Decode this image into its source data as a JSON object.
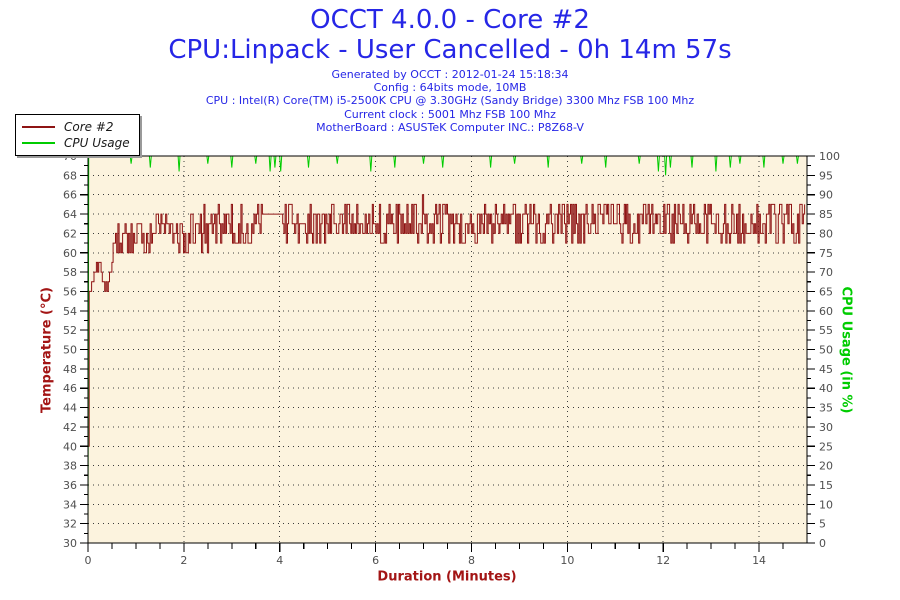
{
  "header": {
    "title_line1": "OCCT 4.0.0 - Core #2",
    "title_line2": "CPU:Linpack - User Cancelled - 0h 14m 57s",
    "info_lines": [
      "Generated by OCCT : 2012-01-24 15:18:34",
      "Config : 64bits mode, 10MB",
      "CPU : Intel(R) Core(TM) i5-2500K CPU @ 3.30GHz (Sandy Bridge) 3300 Mhz FSB 100 Mhz",
      "Current clock : 5001 Mhz FSB 100 Mhz",
      "MotherBoard : ASUSTeK Computer INC.: P8Z68-V"
    ]
  },
  "legend": {
    "items": [
      {
        "label": "Core #2",
        "color": "#8e1414"
      },
      {
        "label": "CPU Usage",
        "color": "#00cc00"
      }
    ]
  },
  "colors": {
    "title_blue": "#2626e6",
    "series_red": "#8e1414",
    "series_green": "#00cc00",
    "axis_red": "#a31515",
    "tick_label": "#4f4f4f",
    "plot_bg": "#fcf3de",
    "grid_dot": "#3c3c3c"
  },
  "chart_data": {
    "type": "line",
    "title": "OCCT 4.0.0 - Core #2",
    "subtitle": "CPU:Linpack - User Cancelled - 0h 14m 57s",
    "grid": "dotted",
    "legend_position": "top-left",
    "x_axis": {
      "label": "Duration (Minutes)",
      "min": 0,
      "max": 15,
      "ticks": [
        0,
        2,
        4,
        6,
        8,
        10,
        12,
        14
      ],
      "minor_step": 0.5
    },
    "y_left": {
      "label": "Temperature (°C)",
      "min": 30,
      "max": 70,
      "ticks": [
        30,
        32,
        34,
        36,
        38,
        40,
        42,
        44,
        46,
        48,
        50,
        52,
        54,
        56,
        58,
        60,
        62,
        64,
        66,
        68,
        70
      ],
      "minor_step": 1
    },
    "y_right": {
      "label": "CPU Usage (in %)",
      "min": 0,
      "max": 100,
      "ticks": [
        0,
        5,
        10,
        15,
        20,
        25,
        30,
        35,
        40,
        45,
        50,
        55,
        60,
        65,
        70,
        75,
        80,
        85,
        90,
        95,
        100
      ],
      "minor_step": 2.5
    },
    "duration_minutes": 14.95,
    "series": [
      {
        "name": "Core #2",
        "axis": "left",
        "color": "#8e1414",
        "unit": "°C",
        "samples": 600,
        "end_x": 14.95,
        "quantize": 1,
        "keypoints": [
          [
            0,
            40
          ],
          [
            0.02,
            56
          ],
          [
            0.08,
            57.5
          ],
          [
            0.15,
            58.2
          ],
          [
            0.25,
            58.6
          ],
          [
            0.32,
            57
          ],
          [
            0.4,
            56.6
          ],
          [
            0.5,
            59.5
          ],
          [
            0.65,
            61
          ],
          [
            0.8,
            60.6
          ],
          [
            1.0,
            61.4
          ],
          [
            1.3,
            62
          ],
          [
            1.7,
            62
          ],
          [
            2.2,
            62.4
          ],
          [
            2.8,
            62.6
          ],
          [
            3.4,
            62.8
          ],
          [
            3.62,
            64
          ],
          [
            4.05,
            64
          ],
          [
            4.15,
            62.9
          ],
          [
            4.6,
            63.0
          ],
          [
            5.0,
            63.1
          ],
          [
            5.5,
            63.3
          ],
          [
            6.0,
            62.9
          ],
          [
            6.5,
            63.2
          ],
          [
            7.0,
            63.4
          ],
          [
            7.5,
            63.0
          ],
          [
            8.0,
            63.1
          ],
          [
            8.5,
            63.3
          ],
          [
            9.0,
            62.9
          ],
          [
            9.5,
            63.1
          ],
          [
            10.0,
            63.4
          ],
          [
            10.5,
            63.1
          ],
          [
            11.0,
            63.0
          ],
          [
            11.5,
            63.2
          ],
          [
            12.0,
            62.9
          ],
          [
            12.5,
            63.1
          ],
          [
            13.0,
            63.3
          ],
          [
            13.5,
            63.1
          ],
          [
            14.0,
            63.4
          ],
          [
            14.5,
            63.1
          ],
          [
            14.95,
            63.3
          ]
        ],
        "flat_segments": [
          {
            "from": 3.62,
            "to": 4.05,
            "value": 64
          }
        ],
        "noise": {
          "seed": 20120124,
          "amplitude": 2.2,
          "early_amplitude": 0.9,
          "start_amplitude": 0.3
        }
      },
      {
        "name": "CPU Usage",
        "axis": "right",
        "color": "#00cc00",
        "unit": "%",
        "keypoints": [
          [
            0,
            2
          ],
          [
            0.015,
            100
          ],
          [
            14.95,
            100
          ]
        ],
        "dips": [
          [
            0.9,
            98
          ],
          [
            1.3,
            97
          ],
          [
            1.9,
            96
          ],
          [
            2.5,
            98
          ],
          [
            3.0,
            97
          ],
          [
            3.5,
            98
          ],
          [
            3.8,
            96
          ],
          [
            3.9,
            97
          ],
          [
            4.02,
            96
          ],
          [
            4.6,
            97
          ],
          [
            5.2,
            98
          ],
          [
            5.9,
            96
          ],
          [
            6.4,
            97
          ],
          [
            7.0,
            98
          ],
          [
            7.4,
            97
          ],
          [
            8.4,
            97
          ],
          [
            8.9,
            98
          ],
          [
            9.6,
            97
          ],
          [
            10.3,
            98
          ],
          [
            10.8,
            97
          ],
          [
            11.5,
            98
          ],
          [
            11.9,
            96
          ],
          [
            12.05,
            95
          ],
          [
            12.15,
            97
          ],
          [
            12.6,
            97
          ],
          [
            13.1,
            96
          ],
          [
            13.4,
            97
          ],
          [
            13.6,
            98
          ],
          [
            14.1,
            97
          ],
          [
            14.5,
            98
          ],
          [
            14.8,
            98
          ]
        ]
      }
    ]
  }
}
